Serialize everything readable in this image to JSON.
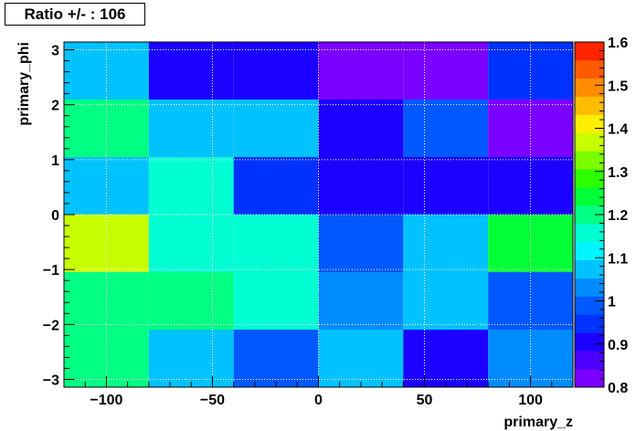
{
  "stats_box": {
    "text": "Ratio +/- : 106"
  },
  "chart_data": {
    "type": "heatmap",
    "title": "Ratio +/- : 106",
    "xlabel": "primary_z",
    "ylabel": "primary_phi",
    "x_bin_edges": [
      -120,
      -80,
      -40,
      0,
      40,
      80,
      120
    ],
    "y_bin_edges": [
      -3.1416,
      -2.0944,
      -1.0472,
      0,
      1.0472,
      2.0944,
      3.1416
    ],
    "xlim": [
      -120,
      120
    ],
    "ylim": [
      -3.1416,
      3.1416
    ],
    "x_ticks": [
      -100,
      -50,
      0,
      50,
      100
    ],
    "x_tick_labels": [
      "−100",
      "−50",
      "0",
      "50",
      "100"
    ],
    "y_ticks": [
      -3,
      -2,
      -1,
      0,
      1,
      2,
      3
    ],
    "y_tick_labels": [
      "−3",
      "−2",
      "−1",
      "0",
      "1",
      "2",
      "3"
    ],
    "z_range": [
      0.8,
      1.6
    ],
    "z_ticks": [
      0.8,
      0.9,
      1,
      1.1,
      1.2,
      1.3,
      1.4,
      1.5,
      1.6
    ],
    "z_tick_labels": [
      "0.8",
      "0.9",
      "1",
      "1.1",
      "1.2",
      "1.3",
      "1.4",
      "1.5",
      "1.6"
    ],
    "grid": true,
    "values_rows_top_to_bottom": [
      [
        1.09,
        0.89,
        0.89,
        0.84,
        0.82,
        0.93
      ],
      [
        1.22,
        1.09,
        1.09,
        0.89,
        0.98,
        0.84
      ],
      [
        1.09,
        1.16,
        0.93,
        0.89,
        0.89,
        0.89
      ],
      [
        1.38,
        1.16,
        1.16,
        0.98,
        1.09,
        1.24
      ],
      [
        1.19,
        1.22,
        1.16,
        1.02,
        1.06,
        0.98
      ],
      [
        1.19,
        1.06,
        0.98,
        1.06,
        0.89,
        1.02
      ]
    ],
    "palette": [
      "#7a00ff",
      "#4b00ff",
      "#1c00ff",
      "#0032ff",
      "#0058ff",
      "#008cff",
      "#00c2ff",
      "#00f5ff",
      "#00ffd2",
      "#00ff82",
      "#00ff37",
      "#2cff00",
      "#7bff00",
      "#c8ff00",
      "#ffee00",
      "#ffbc00",
      "#ff8c00",
      "#ff5a00",
      "#ff2300"
    ]
  }
}
